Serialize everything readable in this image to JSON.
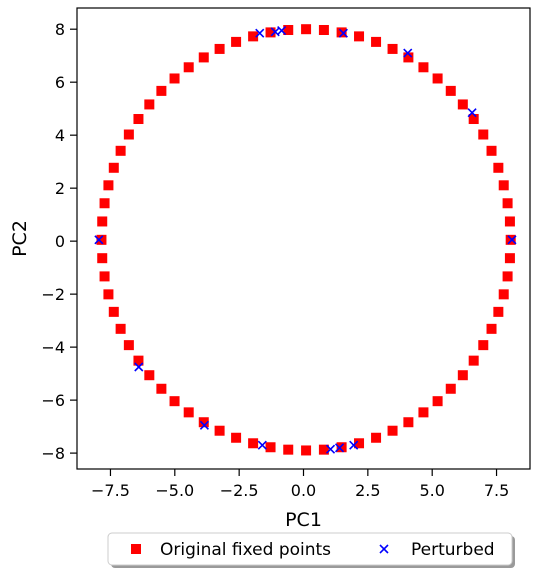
{
  "chart_data": {
    "type": "scatter",
    "xlabel": "PC1",
    "ylabel": "PC2",
    "xlim": [
      -8.8,
      8.8
    ],
    "ylim": [
      -8.6,
      8.8
    ],
    "xticks": [
      -7.5,
      -5.0,
      -2.5,
      0.0,
      2.5,
      5.0,
      7.5
    ],
    "xtick_labels": [
      "−7.5",
      "−5.0",
      "−2.5",
      "0.0",
      "2.5",
      "5.0",
      "7.5"
    ],
    "yticks": [
      -8,
      -6,
      -4,
      -2,
      0,
      2,
      4,
      6,
      8
    ],
    "ytick_labels": [
      "−8",
      "−6",
      "−4",
      "−2",
      "0",
      "2",
      "4",
      "6",
      "8"
    ],
    "grid": false,
    "legend": {
      "placement": "below the axes, centered",
      "shadow": true,
      "ncols": 2
    },
    "series": [
      {
        "name": "Original fixed points",
        "marker": "square",
        "color": "#ff0000",
        "shape": "circle",
        "center": [
          0.1,
          0.05
        ],
        "radius": 7.95,
        "count": 72
      },
      {
        "name": "Perturbed",
        "marker": "x",
        "color": "#0000ff",
        "points": [
          [
            -1.7,
            7.85
          ],
          [
            -1.1,
            7.9
          ],
          [
            -0.85,
            7.95
          ],
          [
            1.55,
            7.85
          ],
          [
            4.05,
            7.1
          ],
          [
            6.55,
            4.85
          ],
          [
            8.1,
            0.05
          ],
          [
            -7.95,
            0.05
          ],
          [
            -6.4,
            -4.75
          ],
          [
            -3.85,
            -6.95
          ],
          [
            -1.6,
            -7.7
          ],
          [
            1.05,
            -7.85
          ],
          [
            1.4,
            -7.8
          ],
          [
            1.95,
            -7.7
          ]
        ]
      }
    ]
  }
}
